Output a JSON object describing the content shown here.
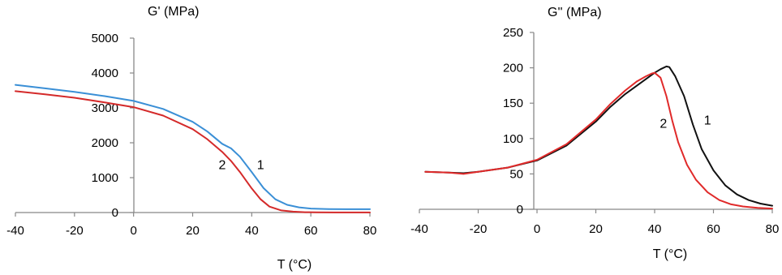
{
  "chart_data": [
    {
      "type": "line",
      "ylabel": "G' (MPa)",
      "xlabel": "T (°C)",
      "xlim": [
        -40,
        80
      ],
      "ylim": [
        0,
        5000
      ],
      "xticks": [
        -40,
        -20,
        0,
        20,
        40,
        60,
        80
      ],
      "yticks": [
        0,
        1000,
        2000,
        3000,
        4000,
        5000
      ],
      "grid": false,
      "series": [
        {
          "name": "1",
          "color": "#3a8fd6",
          "x": [
            -40,
            -30,
            -20,
            -10,
            0,
            10,
            20,
            25,
            30,
            33,
            36,
            40,
            44,
            48,
            52,
            56,
            60,
            66,
            72,
            80
          ],
          "y": [
            3660,
            3560,
            3460,
            3340,
            3200,
            2970,
            2600,
            2320,
            1970,
            1840,
            1600,
            1160,
            700,
            380,
            220,
            150,
            115,
            100,
            95,
            95
          ]
        },
        {
          "name": "2",
          "color": "#d42a2a",
          "x": [
            -40,
            -30,
            -20,
            -10,
            0,
            10,
            20,
            25,
            30,
            33,
            36,
            40,
            43,
            46,
            50,
            54,
            58,
            62,
            68,
            80
          ],
          "y": [
            3480,
            3390,
            3290,
            3160,
            3020,
            2780,
            2390,
            2100,
            1740,
            1480,
            1160,
            690,
            380,
            170,
            60,
            25,
            10,
            5,
            2,
            2
          ]
        }
      ],
      "annotations": [
        {
          "text": "1",
          "x": 43,
          "y": 1250
        },
        {
          "text": "2",
          "x": 30,
          "y": 1250
        }
      ]
    },
    {
      "type": "line",
      "ylabel": "G'' (MPa)",
      "xlabel": "T (°C)",
      "xlim": [
        -40,
        80
      ],
      "ylim": [
        0,
        250
      ],
      "xticks": [
        -40,
        -20,
        0,
        20,
        40,
        60,
        80
      ],
      "yticks": [
        0,
        50,
        100,
        150,
        200,
        250
      ],
      "grid": false,
      "series": [
        {
          "name": "1",
          "color": "#111111",
          "x": [
            -38,
            -30,
            -25,
            -20,
            -10,
            0,
            10,
            20,
            25,
            30,
            35,
            40,
            42,
            44,
            45,
            47,
            50,
            53,
            56,
            60,
            64,
            68,
            72,
            76,
            80
          ],
          "y": [
            53,
            52,
            51,
            53,
            59,
            69,
            90,
            124,
            145,
            163,
            178,
            193,
            198,
            202,
            201,
            188,
            160,
            120,
            85,
            55,
            34,
            21,
            13,
            8,
            5
          ]
        },
        {
          "name": "2",
          "color": "#e02a2a",
          "x": [
            -38,
            -30,
            -25,
            -20,
            -10,
            0,
            10,
            20,
            25,
            30,
            34,
            37,
            39,
            40,
            42,
            44,
            46,
            48,
            51,
            54,
            58,
            62,
            66,
            70,
            75,
            80
          ],
          "y": [
            53,
            52,
            50,
            53,
            59,
            70,
            92,
            127,
            149,
            168,
            181,
            188,
            192,
            193,
            186,
            160,
            125,
            95,
            63,
            42,
            24,
            13,
            7,
            4,
            2,
            1
          ]
        }
      ],
      "annotations": [
        {
          "text": "1",
          "x": 58,
          "y": 120
        },
        {
          "text": "2",
          "x": 43,
          "y": 115
        }
      ]
    }
  ]
}
